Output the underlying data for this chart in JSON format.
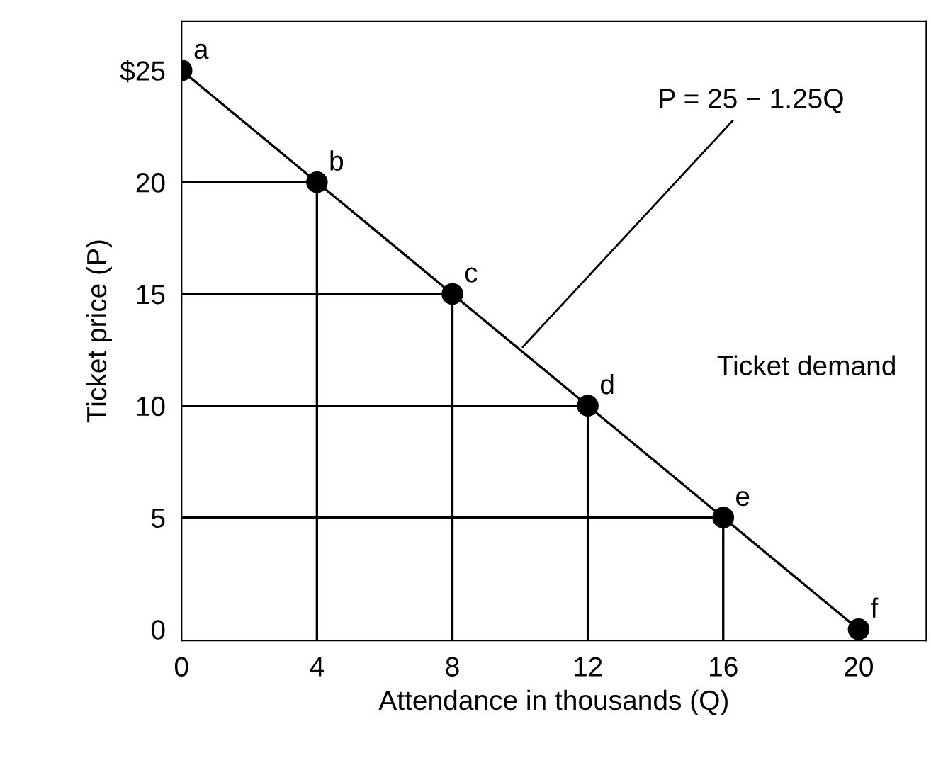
{
  "chart_data": {
    "type": "line",
    "xlabel": "Attendance in thousands (Q)",
    "ylabel": "Ticket price (P)",
    "x": [
      0,
      4,
      8,
      12,
      16,
      20
    ],
    "series": [
      {
        "color": "#000000",
        "values": [
          25,
          20,
          15,
          10,
          5,
          0
        ]
      },
      {
        "color": "#000000",
        "marker": "none",
        "x": [
          0,
          4,
          4
        ],
        "values": [
          20,
          20,
          -0.5
        ]
      },
      {
        "color": "#000000",
        "marker": "none",
        "x": [
          0,
          8,
          8
        ],
        "values": [
          15,
          15,
          -0.5
        ]
      },
      {
        "color": "#000000",
        "marker": "none",
        "x": [
          0,
          12,
          12
        ],
        "values": [
          10,
          10,
          -0.5
        ]
      },
      {
        "color": "#000000",
        "marker": "none",
        "x": [
          0,
          16,
          16
        ],
        "values": [
          5,
          5,
          -0.5
        ]
      }
    ],
    "marker": "circle",
    "line_style": "solid",
    "legend": false,
    "xlim": [
      0,
      22
    ],
    "ylim": [
      -0.5,
      27.2
    ],
    "xticks": [
      0,
      4,
      8,
      12,
      16,
      20
    ],
    "yticks": [
      0,
      5,
      10,
      15,
      20,
      {
        "value": 25,
        "label": "$25"
      }
    ],
    "annotations": [
      {
        "text": "a",
        "x": 0,
        "y": 25
      },
      {
        "text": "b",
        "x": 4,
        "y": 20
      },
      {
        "text": "c",
        "x": 8,
        "y": 15
      },
      {
        "text": "d",
        "x": 12,
        "y": 10
      },
      {
        "text": "e",
        "x": 16,
        "y": 5
      },
      {
        "text": "f",
        "x": 20,
        "y": 0
      },
      {
        "text": "P = 25 − 1.25Q",
        "x": 10,
        "y": 12.5
      },
      "Ticket demand"
    ]
  }
}
